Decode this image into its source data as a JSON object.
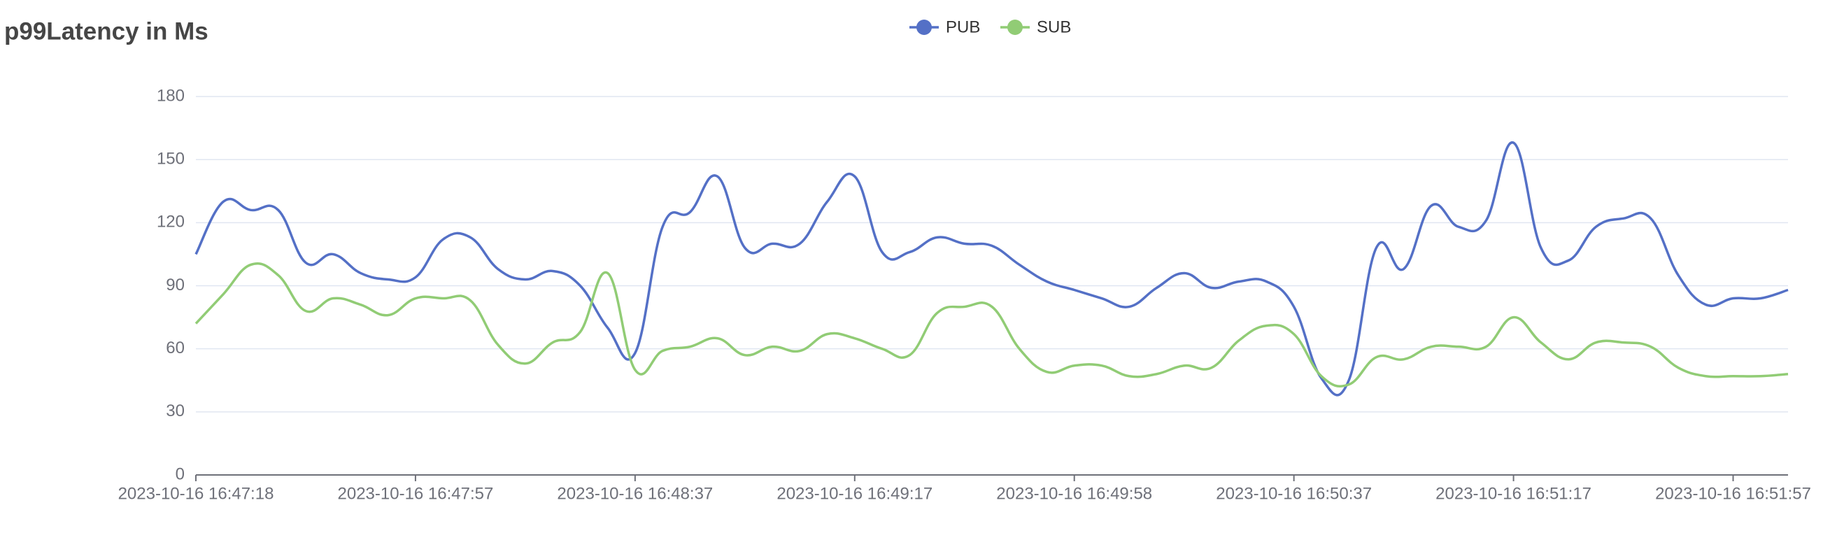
{
  "chart_data": {
    "type": "line",
    "title": "p99Latency in Ms",
    "categories": [
      "2023-10-16 16:47:18",
      null,
      null,
      null,
      null,
      null,
      null,
      null,
      "2023-10-16 16:47:57",
      null,
      null,
      null,
      null,
      null,
      null,
      null,
      "2023-10-16 16:48:37",
      null,
      null,
      null,
      null,
      null,
      null,
      null,
      "2023-10-16 16:49:17",
      null,
      null,
      null,
      null,
      null,
      null,
      null,
      "2023-10-16 16:49:58",
      null,
      null,
      null,
      null,
      null,
      null,
      null,
      "2023-10-16 16:50:37",
      null,
      null,
      null,
      null,
      null,
      null,
      null,
      "2023-10-16 16:51:17",
      null,
      null,
      null,
      null,
      null,
      null,
      null,
      "2023-10-16 16:51:57",
      null,
      null
    ],
    "series": [
      {
        "name": "PUB",
        "color": "#5470c6",
        "values": [
          105,
          130,
          126,
          126,
          101,
          105,
          96,
          93,
          94,
          112,
          113,
          98,
          93,
          97,
          90,
          70,
          58,
          118,
          125,
          142,
          108,
          110,
          110,
          130,
          142,
          106,
          106,
          113,
          110,
          109,
          100,
          92,
          88,
          84,
          80,
          89,
          96,
          89,
          92,
          92,
          80,
          46,
          45,
          108,
          98,
          128,
          118,
          121,
          158,
          108,
          102,
          118,
          122,
          122,
          95,
          81,
          84,
          84,
          88
        ]
      },
      {
        "name": "SUB",
        "color": "#91cc75",
        "values": [
          72,
          86,
          100,
          95,
          78,
          84,
          81,
          76,
          84,
          84,
          83,
          62,
          53,
          63,
          68,
          96,
          50,
          59,
          61,
          65,
          57,
          61,
          59,
          67,
          65,
          60,
          57,
          77,
          80,
          80,
          60,
          49,
          52,
          52,
          47,
          48,
          52,
          51,
          64,
          71,
          67,
          47,
          43,
          56,
          55,
          61,
          61,
          61,
          75,
          63,
          55,
          63,
          63,
          61,
          51,
          47,
          47,
          47,
          48
        ]
      }
    ],
    "ylim": [
      0,
      180
    ],
    "yticks": [
      0,
      30,
      60,
      90,
      120,
      150,
      180
    ],
    "grid": true
  }
}
